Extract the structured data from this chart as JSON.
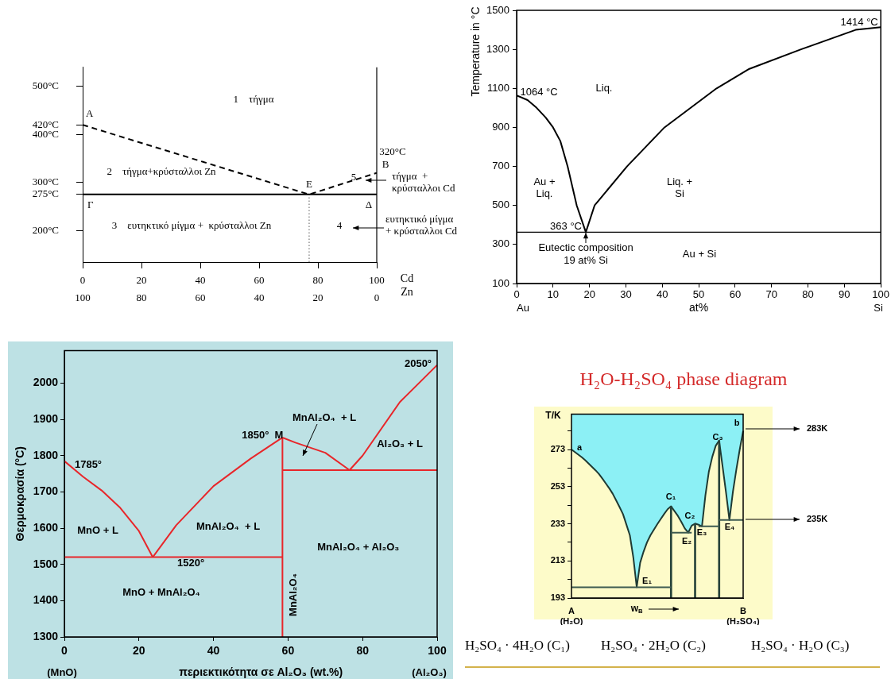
{
  "chart_data": [
    {
      "type": "line",
      "xlabel": "Cd",
      "x2label": "Zn",
      "xlim": [
        0,
        100
      ],
      "xticks": [
        0,
        20,
        40,
        60,
        80,
        100
      ],
      "x2lim": [
        100,
        0
      ],
      "x2ticks": [
        100,
        80,
        60,
        40,
        20,
        0
      ],
      "ylim": [
        134,
        540
      ],
      "yticks": [
        {
          "value": 500,
          "label": "500°C"
        },
        {
          "value": 420,
          "label": "420°C"
        },
        {
          "value": 400,
          "label": "400°C"
        },
        {
          "value": 300,
          "label": "300°C"
        },
        {
          "value": 275,
          "label": "275°C"
        },
        {
          "value": 200,
          "label": "200°C"
        }
      ],
      "series": [
        {
          "color": "#000000",
          "line_style": "dashed",
          "x": [
            0,
            77,
            100
          ],
          "values": [
            420,
            275,
            320
          ]
        },
        {
          "color": "#000000",
          "x": [
            0,
            100
          ],
          "values": [
            275,
            275
          ]
        },
        {
          "color": "#aaaaaa",
          "line_style": "dotted",
          "x": [
            77,
            77
          ],
          "values": [
            134,
            275
          ]
        }
      ],
      "ref_lines": [
        {
          "axis": "x",
          "value": 100
        }
      ],
      "annotations": [
        "1    τήγμα",
        "2    τήγμα+κρύσταλλοι Zn",
        "3    ευτηκτικό μίγμα +  κρύσταλλοι Zn",
        "4",
        "5",
        {
          "text": "A",
          "x": 0,
          "y": 420
        },
        {
          "text": "B",
          "x": 100,
          "y": 320
        },
        {
          "text": "320°C",
          "x": 100,
          "y": 320
        },
        {
          "text": "E",
          "x": 77,
          "y": 275
        },
        {
          "text": "Γ",
          "x": 0,
          "y": 275
        },
        {
          "text": "Δ",
          "x": 100,
          "y": 275
        },
        "τήγμα  +\nκρύσταλλοι Cd",
        "ευτηκτικό μίγμα\n+ κρύσταλλοι Cd"
      ]
    },
    {
      "type": "line",
      "ylabel": "Temperature in °C",
      "xlabel": "at%",
      "xlim": [
        0,
        100
      ],
      "xticks": [
        0,
        10,
        20,
        30,
        40,
        50,
        60,
        70,
        80,
        90,
        100
      ],
      "ylim": [
        100,
        1500
      ],
      "yticks": [
        100,
        300,
        500,
        700,
        900,
        1100,
        1300,
        1500
      ],
      "series": [
        {
          "color": "#000000",
          "x": [
            0,
            3,
            5.5,
            8,
            10,
            12,
            14,
            16.5,
            19
          ],
          "values": [
            1064,
            1040,
            1000,
            950,
            900,
            830,
            700,
            500,
            363
          ]
        },
        {
          "color": "#000000",
          "x": [
            19,
            21.4,
            30.3,
            40.6,
            54.9,
            63.9,
            78.1,
            93.1,
            100
          ],
          "values": [
            363,
            500,
            700,
            900,
            1100,
            1200,
            1300,
            1400,
            1414
          ]
        }
      ],
      "ref_lines": [
        {
          "axis": "y",
          "value": 363
        }
      ],
      "annotations": [
        {
          "text": "1064 °C",
          "x": 0,
          "y": 1064
        },
        {
          "text": "1414 °C",
          "x": 100,
          "y": 1414
        },
        {
          "text": "363 °C",
          "x": 19,
          "y": 363
        },
        {
          "text": "Eutectic composition\n19 at% Si",
          "x": 19,
          "y": 363
        },
        "Liq.",
        "Au +\nLiq.",
        "Liq. +\nSi",
        "Au + Si",
        "Au",
        "Si"
      ]
    },
    {
      "type": "line",
      "ylabel": "Θερμοκρασία (°C)",
      "xlabel": "περιεκτικότητα σε Al₂O₃ (wt.%)",
      "xlim": [
        0,
        100
      ],
      "xticks": [
        0,
        20,
        40,
        60,
        80,
        100
      ],
      "ylim": [
        1300,
        2090
      ],
      "yticks": [
        1300,
        1400,
        1500,
        1600,
        1700,
        1800,
        1900,
        2000
      ],
      "series": [
        {
          "color": "#e8262a",
          "x": [
            0,
            5,
            10,
            15,
            20,
            23.7
          ],
          "values": [
            1785,
            1742,
            1704,
            1656,
            1592,
            1520
          ]
        },
        {
          "color": "#e8262a",
          "x": [
            23.7,
            30,
            40,
            50,
            58.5
          ],
          "values": [
            1520,
            1608,
            1716,
            1792,
            1850
          ]
        },
        {
          "color": "#e8262a",
          "x": [
            58.5,
            62,
            70,
            76.5
          ],
          "values": [
            1850,
            1836,
            1808,
            1760
          ]
        },
        {
          "color": "#e8262a",
          "x": [
            76.5,
            80,
            90,
            100
          ],
          "values": [
            1760,
            1800,
            1948,
            2050
          ]
        },
        {
          "color": "#e8262a",
          "x": [
            0,
            58.5
          ],
          "values": [
            1520,
            1520
          ]
        },
        {
          "color": "#e8262a",
          "x": [
            58.5,
            58.5
          ],
          "values": [
            1300,
            1850
          ]
        },
        {
          "color": "#e8262a",
          "x": [
            58.5,
            100
          ],
          "values": [
            1760,
            1760
          ]
        }
      ],
      "annotations": [
        {
          "text": "1785°",
          "x": 0,
          "y": 1785
        },
        {
          "text": "1520°",
          "x": 23.7,
          "y": 1520
        },
        {
          "text": "1850°  M",
          "x": 58.5,
          "y": 1850
        },
        {
          "text": "2050°",
          "x": 100,
          "y": 2050
        },
        "MnO + L",
        "MnAl₂O₄  + L",
        "MnAl₂O₄  + L",
        "Al₂O₃ + L",
        "MnAl₂O₄ + Al₂O₃",
        "MnO + MnAl₂O₄",
        "MnAl₂O₄",
        "(MnO)",
        "(Al₂O₃)"
      ]
    },
    {
      "type": "line",
      "title": "H₂O-H₂SO₄ phase diagram",
      "ylabel": "T/K",
      "xlabel": "w$_{B}$",
      "ylim": [
        193,
        292
      ],
      "categories": [
        "A\n(H₂O)",
        null,
        null,
        null,
        null,
        null,
        null,
        null,
        null,
        null,
        null,
        null,
        null,
        null,
        null,
        null,
        null,
        null,
        null,
        null,
        null,
        null,
        null,
        null,
        null,
        null,
        null,
        null,
        null,
        null,
        null,
        null,
        null,
        null,
        null,
        null,
        null,
        null,
        null,
        null,
        null,
        null,
        null,
        null,
        null,
        null,
        null,
        null,
        null,
        null,
        "B\n(H₂SO₄)"
      ],
      "yticks": [
        193,
        {
          "value": 203,
          "label": null
        },
        213,
        {
          "value": 223,
          "label": null
        },
        233,
        {
          "value": 243,
          "label": null
        },
        253,
        {
          "value": 263,
          "label": null
        },
        273,
        {
          "value": 283,
          "label": null
        }
      ],
      "series": [
        {
          "type": "area",
          "color": "#fdfbc9",
          "values": [
            273,
            271.6,
            270.2,
            268.8,
            267.2,
            265.4,
            263.6,
            261.8,
            259.8,
            257.3,
            254.7,
            252.1,
            249.2,
            245.6,
            242,
            238.2,
            232.5,
            226.8,
            215,
            198.8,
            212,
            218,
            223,
            226.8,
            229.8,
            232.8,
            235.6,
            238.3,
            240.8,
            242.4,
            239.8,
            237.2,
            234,
            230.5,
            228.2,
            232,
            233.1,
            232.5,
            231.6,
            248.2,
            261,
            269,
            275,
            277.8,
            264,
            250,
            235,
            250,
            262,
            273,
            283
          ]
        },
        {
          "color": "#3d5a50",
          "values": [
            198.8,
            198.8,
            198.8,
            198.8,
            198.8,
            198.8,
            198.8,
            198.8,
            198.8,
            198.8,
            198.8,
            198.8,
            198.8,
            198.8,
            198.8,
            198.8,
            198.8,
            198.8,
            198.8,
            198.8,
            198.8,
            198.8,
            198.8,
            198.8,
            198.8,
            198.8,
            198.8,
            198.8,
            198.8,
            198.8,
            null,
            null,
            null,
            null,
            null,
            null,
            null,
            null,
            null,
            null,
            null,
            null,
            null,
            null,
            null,
            null,
            null,
            null,
            null,
            null,
            null
          ]
        },
        {
          "color": "#3d5a50",
          "values": [
            null,
            null,
            null,
            null,
            null,
            null,
            null,
            null,
            null,
            null,
            null,
            null,
            null,
            null,
            null,
            null,
            null,
            null,
            null,
            null,
            null,
            null,
            null,
            null,
            null,
            null,
            null,
            null,
            null,
            228.2,
            228.2,
            228.2,
            228.2,
            228.2,
            228.2,
            228.2,
            null,
            null,
            null,
            null,
            null,
            null,
            null,
            null,
            null,
            null,
            null,
            null,
            null,
            null,
            null
          ]
        },
        {
          "color": "#3d5a50",
          "values": [
            null,
            null,
            null,
            null,
            null,
            null,
            null,
            null,
            null,
            null,
            null,
            null,
            null,
            null,
            null,
            null,
            null,
            null,
            null,
            null,
            null,
            null,
            null,
            null,
            null,
            null,
            null,
            null,
            null,
            null,
            null,
            null,
            null,
            null,
            null,
            null,
            null,
            231.6,
            231.6,
            231.6,
            231.6,
            231.6,
            231.6,
            231.6,
            null,
            null,
            null,
            null,
            null,
            null,
            null
          ]
        },
        {
          "color": "#3d5a50",
          "values": [
            null,
            null,
            null,
            null,
            null,
            null,
            null,
            null,
            null,
            null,
            null,
            null,
            null,
            null,
            null,
            null,
            null,
            null,
            null,
            null,
            null,
            null,
            null,
            null,
            null,
            null,
            null,
            null,
            null,
            null,
            null,
            null,
            null,
            null,
            null,
            null,
            null,
            null,
            null,
            null,
            null,
            null,
            null,
            235,
            235,
            235,
            235,
            235,
            235,
            235,
            235
          ]
        },
        {
          "type": "bar",
          "color": "#27433b",
          "values": [
            null,
            null,
            null,
            null,
            null,
            null,
            null,
            null,
            null,
            null,
            null,
            null,
            null,
            null,
            null,
            null,
            null,
            null,
            null,
            null,
            null,
            null,
            null,
            null,
            null,
            null,
            null,
            null,
            null,
            49.4,
            null,
            null,
            null,
            null,
            null,
            null,
            40.1,
            null,
            null,
            null,
            null,
            null,
            null,
            84.8,
            null,
            null,
            null,
            null,
            null,
            null,
            null
          ],
          "base": [
            null,
            null,
            null,
            null,
            null,
            null,
            null,
            null,
            null,
            null,
            null,
            null,
            null,
            null,
            null,
            null,
            null,
            null,
            null,
            null,
            null,
            null,
            null,
            null,
            null,
            null,
            null,
            null,
            null,
            193,
            null,
            null,
            null,
            null,
            null,
            null,
            193,
            null,
            null,
            null,
            null,
            null,
            null,
            193,
            null,
            null,
            null,
            null,
            null,
            null,
            null
          ]
        }
      ],
      "annotations": [
        "a",
        "C₁",
        "C₂",
        "C₃",
        "b",
        "E₁",
        "E₂",
        "E₃",
        "E₄",
        "283K",
        "235K",
        "H₂SO₄ · 4H₂O (C₁)",
        "H₂SO₄ · 2H₂O (C₂)",
        "H₂SO₄ · H₂O (C₃)"
      ]
    }
  ]
}
